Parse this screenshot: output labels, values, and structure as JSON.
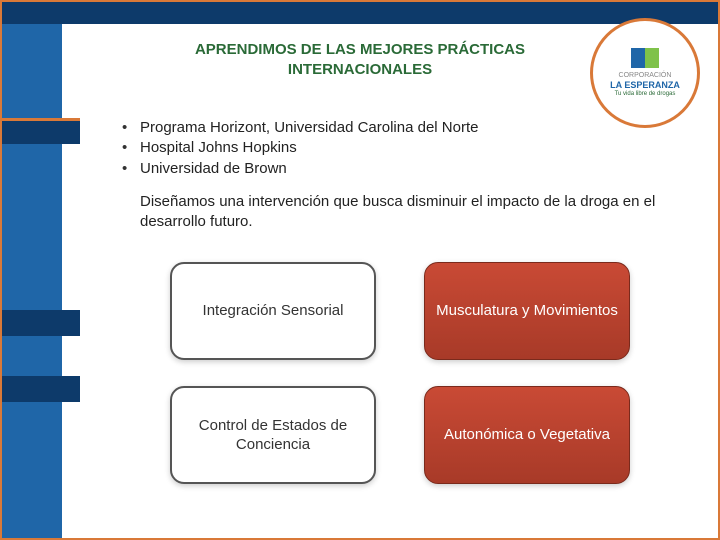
{
  "colors": {
    "outer_border": "#d97938",
    "top_dark": "#0d3a6a",
    "side_bar": "#1f66a8",
    "heading_color": "#2a6a37",
    "box_red_top": "#c94a35",
    "box_red_bottom": "#a83a28"
  },
  "logo": {
    "top_text": "CORPORACIÓN",
    "name": "LA ESPERANZA",
    "tagline": "Tu vida libre de drogas"
  },
  "heading": {
    "line1": "APRENDIMOS DE LAS MEJORES PRÁCTICAS",
    "line2": "INTERNACIONALES"
  },
  "bullets": [
    "Programa Horizont, Universidad Carolina del Norte",
    "Hospital Johns Hopkins",
    "Universidad de Brown"
  ],
  "subtext": "Diseñamos una intervención que busca disminuir el impacto de la droga en el desarrollo futuro.",
  "boxes": [
    {
      "label": "Integración Sensorial",
      "style": "white"
    },
    {
      "label": "Musculatura y Movimientos",
      "style": "red"
    },
    {
      "label": "Control de Estados de Conciencia",
      "style": "white"
    },
    {
      "label": "Autonómica o Vegetativa",
      "style": "red"
    }
  ]
}
